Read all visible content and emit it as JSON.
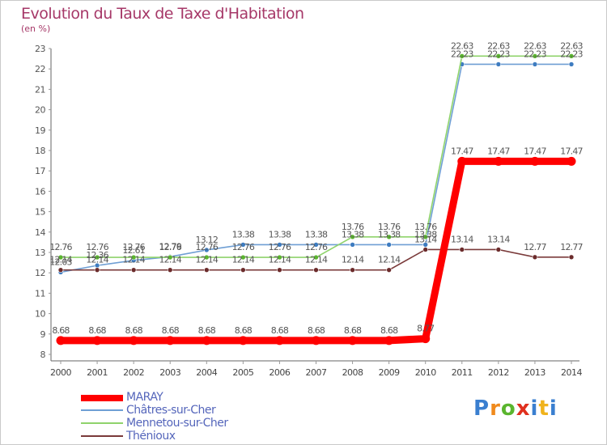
{
  "header": {
    "title": "Evolution du Taux de Taxe d'Habitation",
    "unit": "(en %)"
  },
  "chart_data": {
    "type": "line",
    "title": "Evolution du Taux de Taxe d'Habitation",
    "ylabel": "(en %)",
    "xlabel": "",
    "x": [
      "2000",
      "2001",
      "2002",
      "2003",
      "2004",
      "2005",
      "2006",
      "2007",
      "2008",
      "2009",
      "2010",
      "2011",
      "2012",
      "2013",
      "2014"
    ],
    "yticks": [
      "8",
      "9",
      "10",
      "11",
      "12",
      "13",
      "14",
      "15",
      "16",
      "17",
      "18",
      "19",
      "20",
      "21",
      "22",
      "23"
    ],
    "ylim": [
      8,
      23
    ],
    "grid": false,
    "legend_position": "bottom-left",
    "series": [
      {
        "name": "Châtres-sur-Cher",
        "color": "#6f9fd4",
        "marker": "#3e7cc0",
        "values": [
          12.03,
          12.36,
          12.61,
          12.79,
          13.12,
          13.38,
          13.38,
          13.38,
          13.38,
          13.38,
          13.38,
          22.23,
          22.23,
          22.23,
          22.23
        ],
        "labels": [
          "12.03",
          "12.36",
          "12.61",
          "12.79",
          "13.12",
          "13.38",
          "13.38",
          "13.38",
          "13.38",
          "13.38",
          "13.38",
          "22.23",
          "22.23",
          "22.23",
          "22.23"
        ]
      },
      {
        "name": "Mennetou-sur-Cher",
        "color": "#8fd36b",
        "marker": "#5ab52e",
        "values": [
          12.76,
          12.76,
          12.76,
          12.76,
          12.76,
          12.76,
          12.76,
          12.76,
          13.76,
          13.76,
          13.76,
          22.63,
          22.63,
          22.63,
          22.63
        ],
        "labels": [
          "12.76",
          "12.76",
          "12.76",
          "12.76",
          "12.76",
          "12.76",
          "12.76",
          "12.76",
          "13.76",
          "13.76",
          "13.76",
          "22.63",
          "22.63",
          "22.63",
          "22.63"
        ]
      },
      {
        "name": "Thénioux",
        "color": "#7a3a3a",
        "marker": "#6b2b2b",
        "values": [
          12.14,
          12.14,
          12.14,
          12.14,
          12.14,
          12.14,
          12.14,
          12.14,
          12.14,
          12.14,
          13.14,
          13.14,
          13.14,
          12.77,
          12.77
        ],
        "labels": [
          "12.14",
          "12.14",
          "12.14",
          "12.14",
          "12.14",
          "12.14",
          "12.14",
          "12.14",
          "12.14",
          "12.14",
          "13.14",
          "13.14",
          "13.14",
          "12.77",
          "12.77"
        ]
      },
      {
        "name": "MARAY",
        "color": "#ff0000",
        "marker": "#ff0000",
        "thick": true,
        "values": [
          8.68,
          8.68,
          8.68,
          8.68,
          8.68,
          8.68,
          8.68,
          8.68,
          8.68,
          8.68,
          8.77,
          17.47,
          17.47,
          17.47,
          17.47
        ],
        "labels": [
          "8.68",
          "8.68",
          "8.68",
          "8.68",
          "8.68",
          "8.68",
          "8.68",
          "8.68",
          "8.68",
          "8.68",
          "8.77",
          "17.47",
          "17.47",
          "17.47",
          "17.47"
        ]
      }
    ]
  },
  "legend": {
    "items": [
      {
        "label": "MARAY",
        "color": "#ff0000"
      },
      {
        "label": "Châtres-sur-Cher",
        "color": "#6f9fd4"
      },
      {
        "label": "Mennetou-sur-Cher",
        "color": "#8fd36b"
      },
      {
        "label": "Thénioux",
        "color": "#7a3a3a"
      }
    ]
  },
  "logo": {
    "letters": [
      "P",
      "r",
      "o",
      "x",
      "i",
      "t",
      "i"
    ],
    "colors": [
      "#3a7fd0",
      "#f08a1c",
      "#5ab52e",
      "#e0301e",
      "#3a7fd0",
      "#f0b31c",
      "#3a7fd0"
    ]
  }
}
